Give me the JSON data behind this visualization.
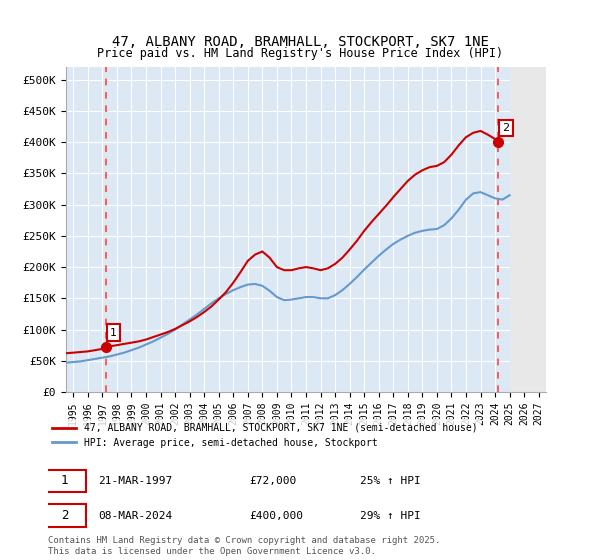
{
  "title_line1": "47, ALBANY ROAD, BRAMHALL, STOCKPORT, SK7 1NE",
  "title_line2": "Price paid vs. HM Land Registry's House Price Index (HPI)",
  "ylabel": "",
  "background_color": "#ffffff",
  "plot_bg_color": "#dce9f5",
  "grid_color": "#ffffff",
  "hatch_color": "#c0c0c0",
  "red_line_color": "#cc0000",
  "blue_line_color": "#6699cc",
  "dashed_line_color": "#ff4444",
  "marker1_x": 1997.22,
  "marker1_y": 72000,
  "marker2_x": 2024.19,
  "marker2_y": 400000,
  "ylim": [
    0,
    520000
  ],
  "xlim_left": 1994.5,
  "xlim_right": 2027.5,
  "yticks": [
    0,
    50000,
    100000,
    150000,
    200000,
    250000,
    300000,
    350000,
    400000,
    450000,
    500000
  ],
  "ytick_labels": [
    "£0",
    "£50K",
    "£100K",
    "£150K",
    "£200K",
    "£250K",
    "£300K",
    "£350K",
    "£400K",
    "£450K",
    "£500K"
  ],
  "xticks": [
    1995,
    1996,
    1997,
    1998,
    1999,
    2000,
    2001,
    2002,
    2003,
    2004,
    2005,
    2006,
    2007,
    2008,
    2009,
    2010,
    2011,
    2012,
    2013,
    2014,
    2015,
    2016,
    2017,
    2018,
    2019,
    2020,
    2021,
    2022,
    2023,
    2024,
    2025,
    2026,
    2027
  ],
  "legend_label1": "47, ALBANY ROAD, BRAMHALL, STOCKPORT, SK7 1NE (semi-detached house)",
  "legend_label2": "HPI: Average price, semi-detached house, Stockport",
  "annotation1_label": "1",
  "annotation1_date": "21-MAR-1997",
  "annotation1_price": "£72,000",
  "annotation1_hpi": "25% ↑ HPI",
  "annotation2_label": "2",
  "annotation2_date": "08-MAR-2024",
  "annotation2_price": "£400,000",
  "annotation2_hpi": "29% ↑ HPI",
  "footer": "Contains HM Land Registry data © Crown copyright and database right 2025.\nThis data is licensed under the Open Government Licence v3.0.",
  "red_x": [
    1994.5,
    1995.0,
    1995.5,
    1996.0,
    1996.5,
    1997.0,
    1997.22,
    1997.5,
    1998.0,
    1998.5,
    1999.0,
    1999.5,
    2000.0,
    2000.5,
    2001.0,
    2001.5,
    2002.0,
    2002.5,
    2003.0,
    2003.5,
    2004.0,
    2004.5,
    2005.0,
    2005.5,
    2006.0,
    2006.5,
    2007.0,
    2007.5,
    2008.0,
    2008.5,
    2009.0,
    2009.5,
    2010.0,
    2010.5,
    2011.0,
    2011.5,
    2012.0,
    2012.5,
    2013.0,
    2013.5,
    2014.0,
    2014.5,
    2015.0,
    2015.5,
    2016.0,
    2016.5,
    2017.0,
    2017.5,
    2018.0,
    2018.5,
    2019.0,
    2019.5,
    2020.0,
    2020.5,
    2021.0,
    2021.5,
    2022.0,
    2022.5,
    2023.0,
    2023.5,
    2024.0,
    2024.19
  ],
  "red_y": [
    62000,
    63000,
    64000,
    65000,
    67000,
    69000,
    72000,
    73000,
    75000,
    77000,
    79000,
    81000,
    84000,
    88000,
    92000,
    96000,
    101000,
    107000,
    113000,
    120000,
    128000,
    137000,
    148000,
    160000,
    175000,
    192000,
    210000,
    220000,
    225000,
    215000,
    200000,
    195000,
    195000,
    198000,
    200000,
    198000,
    195000,
    198000,
    205000,
    215000,
    228000,
    242000,
    258000,
    272000,
    285000,
    298000,
    312000,
    325000,
    338000,
    348000,
    355000,
    360000,
    362000,
    368000,
    380000,
    395000,
    408000,
    415000,
    418000,
    412000,
    405000,
    400000
  ],
  "blue_x": [
    1994.5,
    1995.0,
    1995.5,
    1996.0,
    1996.5,
    1997.0,
    1997.5,
    1998.0,
    1998.5,
    1999.0,
    1999.5,
    2000.0,
    2000.5,
    2001.0,
    2001.5,
    2002.0,
    2002.5,
    2003.0,
    2003.5,
    2004.0,
    2004.5,
    2005.0,
    2005.5,
    2006.0,
    2006.5,
    2007.0,
    2007.5,
    2008.0,
    2008.5,
    2009.0,
    2009.5,
    2010.0,
    2010.5,
    2011.0,
    2011.5,
    2012.0,
    2012.5,
    2013.0,
    2013.5,
    2014.0,
    2014.5,
    2015.0,
    2015.5,
    2016.0,
    2016.5,
    2017.0,
    2017.5,
    2018.0,
    2018.5,
    2019.0,
    2019.5,
    2020.0,
    2020.5,
    2021.0,
    2021.5,
    2022.0,
    2022.5,
    2023.0,
    2023.5,
    2024.0,
    2024.5,
    2025.0
  ],
  "blue_y": [
    47000,
    48000,
    49000,
    51000,
    53000,
    55000,
    57000,
    60000,
    63000,
    67000,
    71000,
    76000,
    81000,
    87000,
    93000,
    100000,
    108000,
    116000,
    124000,
    133000,
    142000,
    150000,
    157000,
    163000,
    168000,
    172000,
    173000,
    170000,
    162000,
    152000,
    147000,
    148000,
    150000,
    152000,
    152000,
    150000,
    150000,
    155000,
    163000,
    173000,
    184000,
    196000,
    207000,
    218000,
    228000,
    237000,
    244000,
    250000,
    255000,
    258000,
    260000,
    261000,
    267000,
    278000,
    292000,
    308000,
    318000,
    320000,
    315000,
    310000,
    308000,
    315000
  ]
}
